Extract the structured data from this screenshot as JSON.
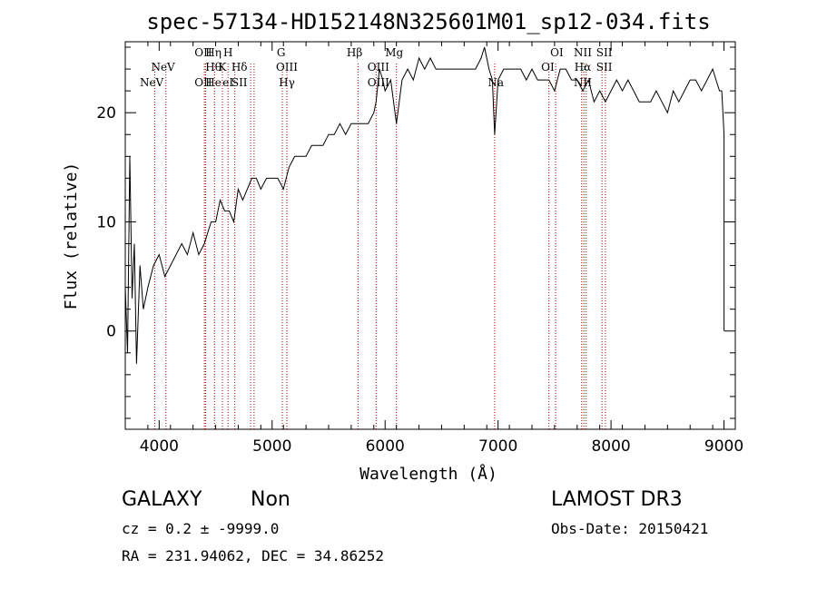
{
  "chart_data": {
    "type": "line",
    "title": "spec-57134-HD152148N325601M01_sp12-034.fits",
    "xlabel": "Wavelength (Å)",
    "ylabel": "Flux (relative)",
    "xlim": [
      3700,
      9100
    ],
    "ylim": [
      -9,
      26.5
    ],
    "xticks": [
      4000,
      5000,
      6000,
      7000,
      8000,
      9000
    ],
    "yticks": [
      0,
      10,
      20
    ],
    "line_color": "#000000",
    "marker_color": "#aa0000",
    "spectrum": {
      "x": [
        3700,
        3720,
        3740,
        3760,
        3780,
        3800,
        3830,
        3860,
        3900,
        3950,
        4000,
        4050,
        4100,
        4150,
        4200,
        4250,
        4300,
        4350,
        4400,
        4430,
        4460,
        4500,
        4540,
        4580,
        4620,
        4660,
        4700,
        4740,
        4780,
        4820,
        4860,
        4900,
        4950,
        5000,
        5050,
        5100,
        5150,
        5200,
        5250,
        5300,
        5350,
        5400,
        5450,
        5500,
        5550,
        5600,
        5650,
        5700,
        5750,
        5800,
        5850,
        5900,
        5920,
        5950,
        5980,
        6000,
        6050,
        6100,
        6150,
        6200,
        6250,
        6300,
        6350,
        6400,
        6450,
        6500,
        6550,
        6600,
        6650,
        6700,
        6750,
        6800,
        6850,
        6880,
        6920,
        6950,
        6970,
        7000,
        7050,
        7100,
        7150,
        7200,
        7250,
        7300,
        7350,
        7400,
        7450,
        7500,
        7550,
        7600,
        7650,
        7700,
        7750,
        7800,
        7850,
        7900,
        7950,
        8000,
        8050,
        8100,
        8150,
        8200,
        8250,
        8300,
        8350,
        8400,
        8450,
        8500,
        8550,
        8600,
        8650,
        8700,
        8750,
        8800,
        8850,
        8900,
        8930,
        8960,
        8980,
        9000,
        9000
      ],
      "y": [
        4,
        -2,
        16,
        3,
        8,
        -3,
        6,
        2,
        4,
        6,
        7,
        5,
        6,
        7,
        8,
        7,
        9,
        7,
        8,
        9,
        10,
        10,
        12,
        11,
        11,
        10,
        13,
        12,
        13,
        14,
        14,
        13,
        14,
        14,
        14,
        13,
        15,
        16,
        16,
        16,
        17,
        17,
        17,
        18,
        18,
        19,
        18,
        19,
        19,
        19,
        19,
        20,
        21,
        24,
        23,
        22,
        23,
        19,
        23,
        24,
        23,
        25,
        24,
        25,
        24,
        24,
        24,
        24,
        24,
        24,
        24,
        24,
        25,
        26,
        24,
        23,
        18,
        23,
        24,
        24,
        24,
        24,
        23,
        24,
        23,
        23,
        23,
        22,
        24,
        24,
        23,
        23,
        22,
        23,
        21,
        22,
        21,
        22,
        23,
        22,
        23,
        22,
        21,
        21,
        21,
        22,
        21,
        20,
        22,
        21,
        22,
        23,
        23,
        22,
        23,
        24,
        23,
        22,
        22,
        18,
        0
      ]
    },
    "markers": [
      {
        "wl": 3934,
        "label": "NeV",
        "row": 3
      },
      {
        "wl": 4034,
        "label": "NeV",
        "row": 2
      },
      {
        "wl": 4390,
        "label": "OII",
        "row": 1
      },
      {
        "wl": 4390,
        "label": "OII",
        "row": 3
      },
      {
        "wl": 4480,
        "label": "Hη",
        "row": 1
      },
      {
        "wl": 4480,
        "label": "Hθ",
        "row": 2
      },
      {
        "wl": 4480,
        "label": "He",
        "row": 3
      },
      {
        "wl": 4560,
        "label": "K",
        "row": 2
      },
      {
        "wl": 4610,
        "label": "H",
        "row": 1
      },
      {
        "wl": 4610,
        "label": "eI",
        "row": 3
      },
      {
        "wl": 4710,
        "label": "Hδ",
        "row": 2
      },
      {
        "wl": 4710,
        "label": "SII",
        "row": 3
      },
      {
        "wl": 5080,
        "label": "G",
        "row": 1
      },
      {
        "wl": 5130,
        "label": "OIII",
        "row": 2
      },
      {
        "wl": 5130,
        "label": "Hγ",
        "row": 3
      },
      {
        "wl": 5730,
        "label": "Hβ",
        "row": 1
      },
      {
        "wl": 5940,
        "label": "OIII",
        "row": 2
      },
      {
        "wl": 5940,
        "label": "OIII",
        "row": 3
      },
      {
        "wl": 6080,
        "label": "Mg",
        "row": 1
      },
      {
        "wl": 6980,
        "label": "Na",
        "row": 3
      },
      {
        "wl": 7440,
        "label": "OI",
        "row": 2
      },
      {
        "wl": 7520,
        "label": "OI",
        "row": 1
      },
      {
        "wl": 7750,
        "label": "NII",
        "row": 1
      },
      {
        "wl": 7750,
        "label": "Hα",
        "row": 2
      },
      {
        "wl": 7750,
        "label": "NII",
        "row": 3
      },
      {
        "wl": 7940,
        "label": "SII",
        "row": 1
      },
      {
        "wl": 7940,
        "label": "SII",
        "row": 2
      }
    ],
    "marker_lines": [
      3960,
      4060,
      4400,
      4410,
      4490,
      4560,
      4610,
      4670,
      4810,
      4840,
      5090,
      5130,
      5760,
      5920,
      6100,
      6970,
      7450,
      7510,
      7740,
      7760,
      7780,
      7920,
      7950
    ]
  },
  "info": {
    "class_label": "GALAXY",
    "subclass_label": "Non",
    "survey": "LAMOST DR3",
    "cz": "cz = 0.2 ± -9999.0",
    "obs_date": "Obs-Date: 20150421",
    "coords": "RA = 231.94062, DEC =  34.86252"
  }
}
